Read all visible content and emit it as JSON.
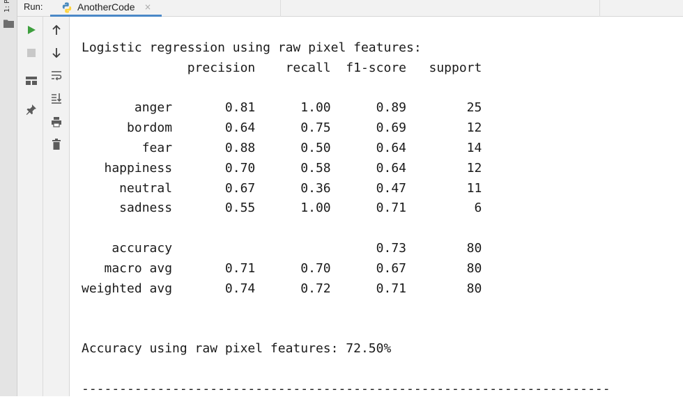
{
  "window": {
    "side_strip_label": "1: P",
    "run_label": "Run:",
    "tab": {
      "title": "AnotherCode",
      "close_glyph": "×"
    }
  },
  "toolbar": {
    "buttons": [
      {
        "icon": "play-icon",
        "label": "Run"
      },
      {
        "icon": "stop-icon",
        "label": "Stop"
      },
      {
        "icon": "layout-icon",
        "label": "Layout"
      },
      {
        "icon": "pin-icon",
        "label": "Pin tab"
      },
      {
        "icon": "arrow-up-icon",
        "label": "Up"
      },
      {
        "icon": "arrow-down-icon",
        "label": "Down"
      },
      {
        "icon": "soft-wrap-icon",
        "label": "Soft-wrap"
      },
      {
        "icon": "scroll-to-end-icon",
        "label": "Scroll to end"
      },
      {
        "icon": "print-icon",
        "label": "Print"
      },
      {
        "icon": "trash-icon",
        "label": "Clear all"
      }
    ]
  },
  "colors": {
    "play": "#3e9f3e",
    "tab_underline": "#4a88c7",
    "icon_gray": "#5c5c5c"
  },
  "console": {
    "lines": [
      "Logistic regression using raw pixel features:",
      "              precision    recall  f1-score   support",
      "",
      "       anger       0.81      1.00      0.89        25",
      "      bordom       0.64      0.75      0.69        12",
      "        fear       0.88      0.50      0.64        14",
      "   happiness       0.70      0.58      0.64        12",
      "     neutral       0.67      0.36      0.47        11",
      "     sadness       0.55      1.00      0.71         6",
      "",
      "    accuracy                           0.73        80",
      "   macro avg       0.71      0.70      0.67        80",
      "weighted avg       0.74      0.72      0.71        80",
      "",
      "",
      "Accuracy using raw pixel features: 72.50%",
      "",
      "----------------------------------------------------------------------"
    ]
  }
}
